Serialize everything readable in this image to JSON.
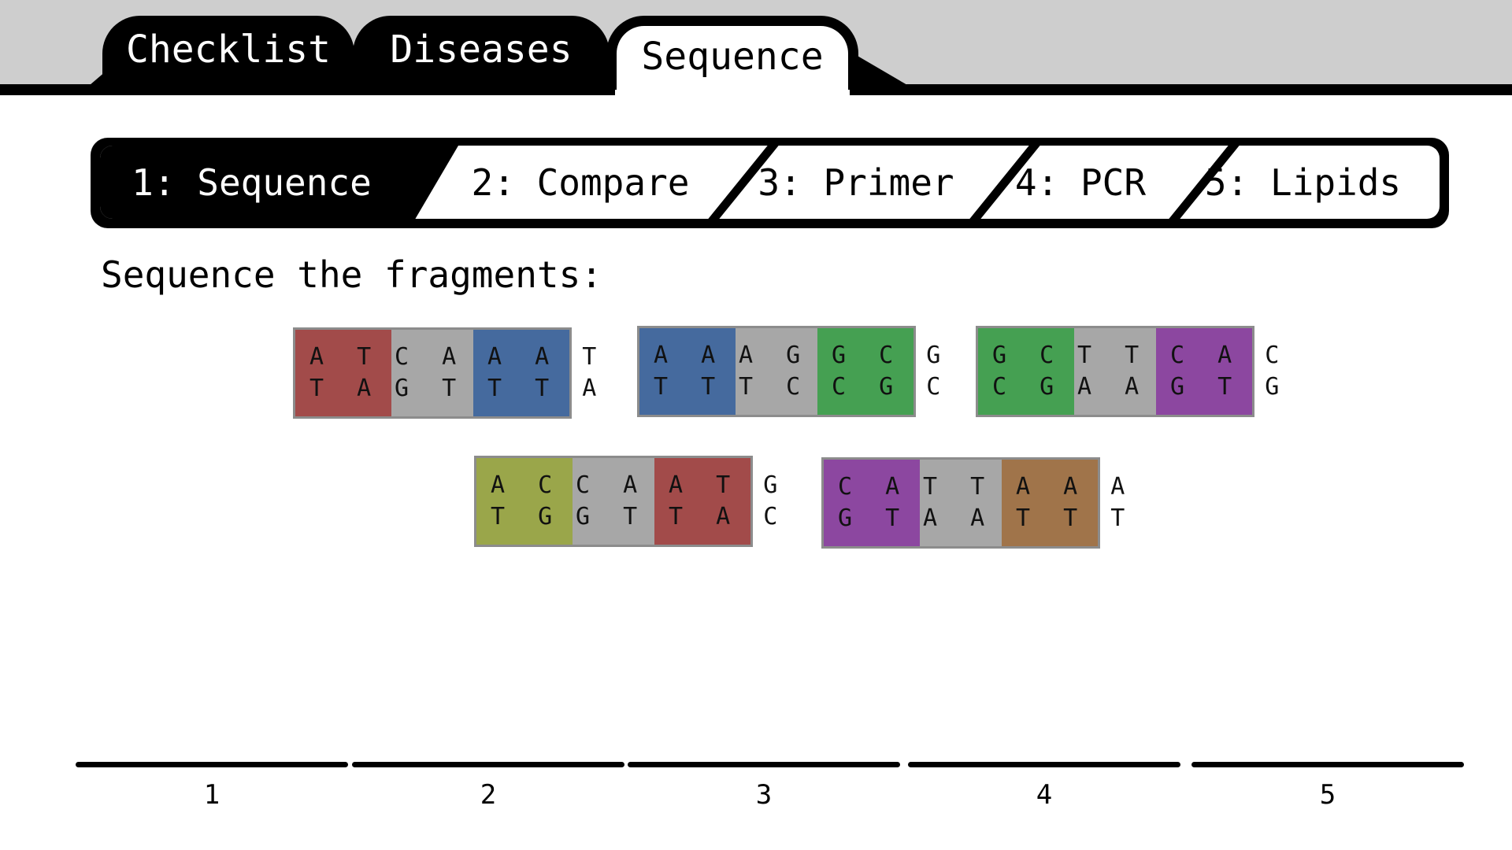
{
  "tabs": [
    {
      "label": "Checklist"
    },
    {
      "label": "Diseases"
    },
    {
      "label": "Sequence",
      "active": true
    }
  ],
  "steps": [
    {
      "label": "1: Sequence",
      "active": true
    },
    {
      "label": "2: Compare"
    },
    {
      "label": "3: Primer"
    },
    {
      "label": "4: PCR"
    },
    {
      "label": "5: Lipids"
    }
  ],
  "prompt": "Sequence the fragments:",
  "colors": {
    "red": "#a24b4a",
    "blue": "#456a9e",
    "green": "#45a052",
    "gray": "#a7a7a7",
    "olive": "#9aa64a",
    "purple": "#8c47a0",
    "brown": "#a0744a"
  },
  "fragments": [
    {
      "blocks": [
        {
          "color": "#a24b4a",
          "top": "A T G",
          "bottom": "T A C"
        },
        {
          "color": "#a7a7a7",
          "top": "C A T",
          "bottom": "G T A"
        },
        {
          "color": "#456a9e",
          "top": "A A T",
          "bottom": "T T A"
        }
      ]
    },
    {
      "blocks": [
        {
          "color": "#456a9e",
          "top": "A A T",
          "bottom": "T T A"
        },
        {
          "color": "#a7a7a7",
          "top": "A G G",
          "bottom": "T C C"
        },
        {
          "color": "#45a052",
          "top": "G C G",
          "bottom": "C G C"
        }
      ]
    },
    {
      "blocks": [
        {
          "color": "#45a052",
          "top": "G C G",
          "bottom": "C G C"
        },
        {
          "color": "#a7a7a7",
          "top": "T T C",
          "bottom": "A A G"
        },
        {
          "color": "#8c47a0",
          "top": "C A C",
          "bottom": "G T G"
        }
      ]
    },
    {
      "blocks": [
        {
          "color": "#9aa64a",
          "top": "A C C",
          "bottom": "T G G"
        },
        {
          "color": "#a7a7a7",
          "top": "C A T",
          "bottom": "G T A"
        },
        {
          "color": "#a24b4a",
          "top": "A T G",
          "bottom": "T A C"
        }
      ]
    },
    {
      "blocks": [
        {
          "color": "#8c47a0",
          "top": "C A C",
          "bottom": "G T G"
        },
        {
          "color": "#a7a7a7",
          "top": "T T C",
          "bottom": "A A G"
        },
        {
          "color": "#a0744a",
          "top": "A A A",
          "bottom": "T T T"
        }
      ]
    }
  ],
  "slots": [
    {
      "label": "1"
    },
    {
      "label": "2"
    },
    {
      "label": "3"
    },
    {
      "label": "4"
    },
    {
      "label": "5"
    }
  ]
}
